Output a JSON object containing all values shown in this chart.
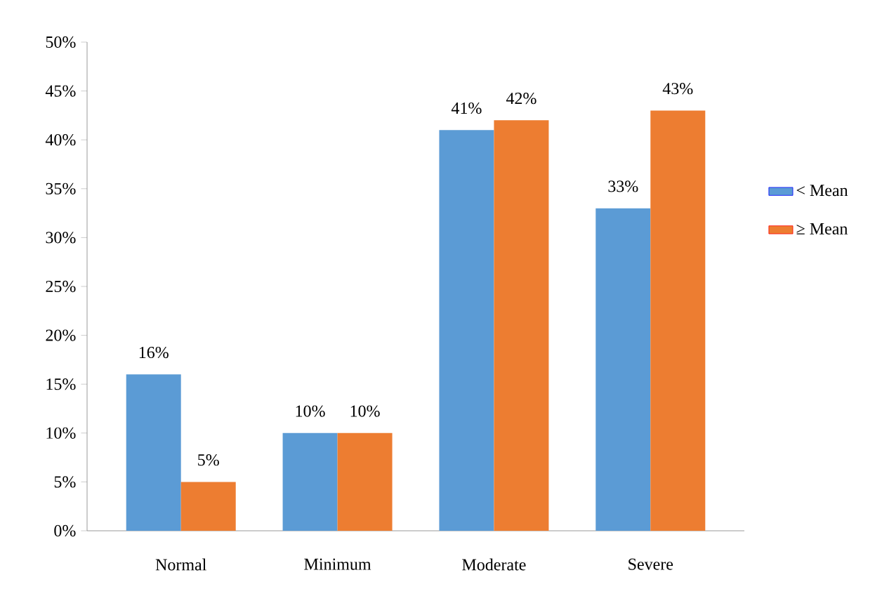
{
  "chart_data": {
    "type": "bar",
    "categories": [
      "Normal",
      "Minimum",
      "Moderate",
      "Severe"
    ],
    "series": [
      {
        "name": "< Mean",
        "color": "#5b9bd5",
        "values": [
          16,
          10,
          41,
          33
        ],
        "value_labels": [
          "16%",
          "10%",
          "41%",
          "33%"
        ]
      },
      {
        "name": "≥ Mean",
        "color": "#ed7d31",
        "values": [
          5,
          10,
          42,
          43
        ],
        "value_labels": [
          "5%",
          "10%",
          "42%",
          "43%"
        ]
      }
    ],
    "ylim": [
      0,
      50
    ],
    "yticks": [
      {
        "value": 0,
        "label": "0%"
      },
      {
        "value": 5,
        "label": "5%"
      },
      {
        "value": 10,
        "label": "10%"
      },
      {
        "value": 15,
        "label": "15%"
      },
      {
        "value": 20,
        "label": "20%"
      },
      {
        "value": 25,
        "label": "25%"
      },
      {
        "value": 30,
        "label": "30%"
      },
      {
        "value": 35,
        "label": "35%"
      },
      {
        "value": 40,
        "label": "40%"
      },
      {
        "value": 45,
        "label": "45%"
      },
      {
        "value": 50,
        "label": "50%"
      }
    ],
    "legend": "right"
  }
}
